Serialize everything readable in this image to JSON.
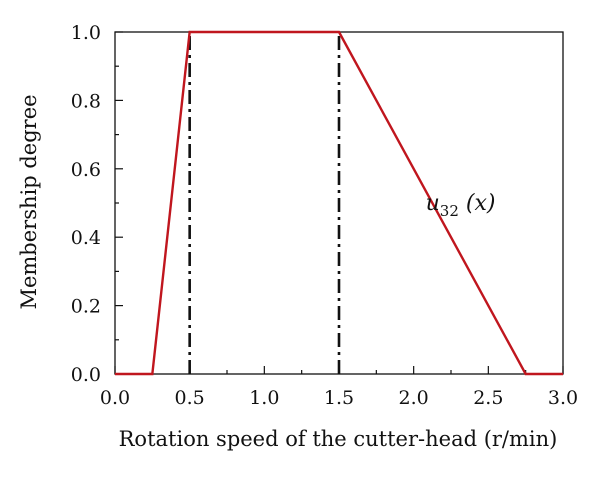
{
  "chart_data": {
    "type": "line",
    "title": "",
    "xlabel": "Rotation speed of the cutter-head (r/min)",
    "ylabel": "Membership degree",
    "xlim": [
      0.0,
      3.0
    ],
    "ylim": [
      0.0,
      1.0
    ],
    "x_ticks": [
      "0.0",
      "0.5",
      "1.0",
      "1.5",
      "2.0",
      "2.5",
      "3.0"
    ],
    "y_ticks": [
      "0.0",
      "0.2",
      "0.4",
      "0.6",
      "0.8",
      "1.0"
    ],
    "grid": false,
    "legend": "none",
    "series": [
      {
        "color": "#c0161e",
        "x": [
          0.0,
          0.25,
          0.5,
          1.5,
          2.75,
          3.0
        ],
        "y": [
          0.0,
          0.0,
          1.0,
          1.0,
          0.0,
          0.0
        ]
      }
    ],
    "reference_lines": [
      {
        "x": 0.5,
        "style": "dash-dot",
        "color": "#111111"
      },
      {
        "x": 1.5,
        "style": "dash-dot",
        "color": "#111111"
      }
    ],
    "annotation": {
      "prefix": "u",
      "subscript": "32",
      "suffix": " (x)",
      "x": 2.08,
      "y": 0.48
    }
  }
}
